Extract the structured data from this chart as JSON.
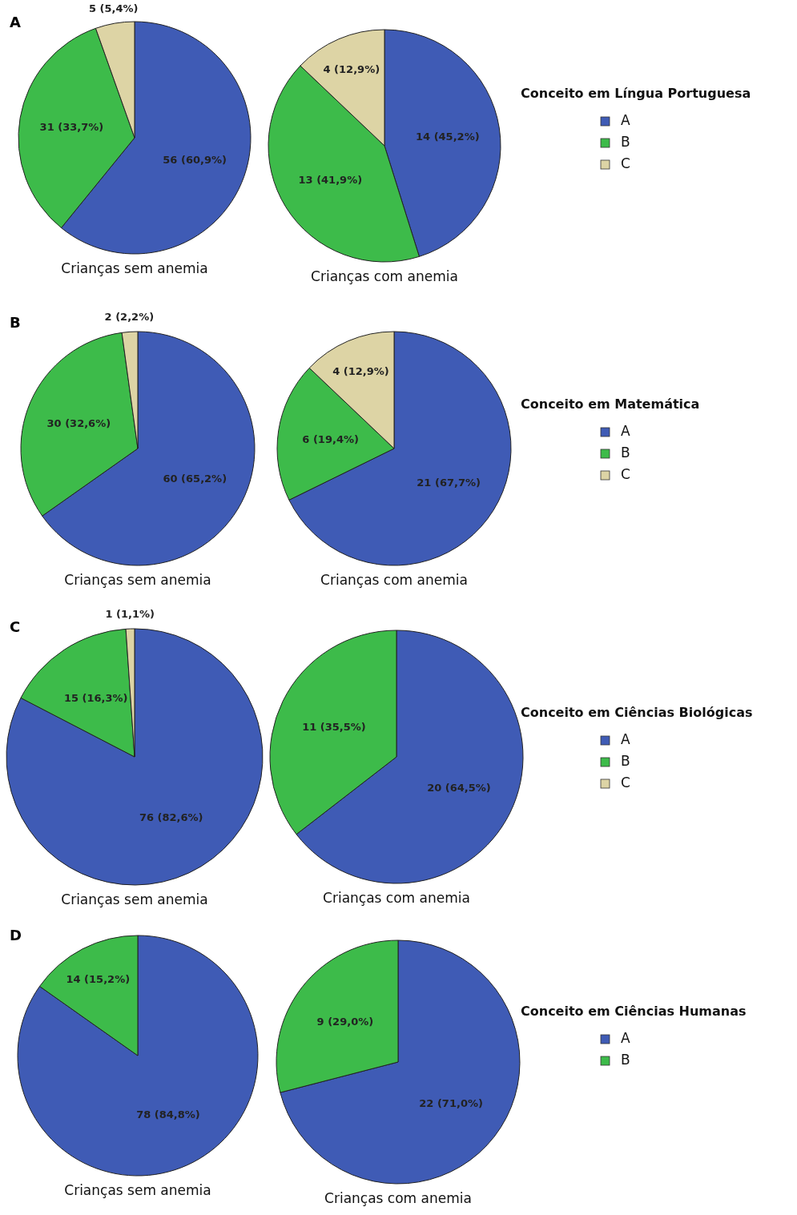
{
  "chart_data": [
    {
      "type": "pie",
      "title": "A",
      "categories": [
        "A",
        "B",
        "C"
      ],
      "values": [
        56,
        31,
        5
      ],
      "colors": [
        "#3f5bb5",
        "#3dbb4a",
        "#ddd4a5"
      ],
      "value_labels": [
        "56 (60,9%)",
        "31 (33,7%)",
        "5 (5,4%)"
      ],
      "xlabel": "Crianças sem anemia",
      "legend": "right",
      "legend_title": "Conceito em Língua Portuguesa"
    },
    {
      "type": "pie",
      "categories": [
        null,
        null,
        null
      ],
      "values": [
        14,
        13,
        4
      ],
      "colors": [
        "#3f5bb5",
        "#3dbb4a",
        "#ddd4a5"
      ],
      "value_labels": [
        "14 (45,2%)",
        "13 (41,9%)",
        "4 (12,9%)"
      ],
      "xlabel": "Crianças com anemia"
    },
    {
      "type": "pie",
      "title": "B",
      "categories": [
        "A",
        "B",
        "C"
      ],
      "values": [
        60,
        30,
        2
      ],
      "colors": [
        "#3f5bb5",
        "#3dbb4a",
        "#ddd4a5"
      ],
      "value_labels": [
        "60 (65,2%)",
        "30 (32,6%)",
        "2 (2,2%)"
      ],
      "xlabel": "Crianças sem anemia",
      "legend": "right",
      "legend_title": "Conceito em Matemática"
    },
    {
      "type": "pie",
      "categories": [
        null,
        null,
        null
      ],
      "values": [
        21,
        6,
        4
      ],
      "colors": [
        "#3f5bb5",
        "#3dbb4a",
        "#ddd4a5"
      ],
      "value_labels": [
        "21 (67,7%)",
        "6 (19,4%)",
        "4 (12,9%)"
      ],
      "xlabel": "Crianças com anemia"
    },
    {
      "type": "pie",
      "title": "C",
      "categories": [
        "A",
        "B",
        "C"
      ],
      "values": [
        76,
        15,
        1
      ],
      "colors": [
        "#3f5bb5",
        "#3dbb4a",
        "#ddd4a5"
      ],
      "value_labels": [
        "76 (82,6%)",
        "15 (16,3%)",
        "1 (1,1%)"
      ],
      "xlabel": "Crianças sem anemia",
      "legend": "right",
      "legend_title": "Conceito em Ciências Biológicas"
    },
    {
      "type": "pie",
      "categories": [
        null,
        null
      ],
      "values": [
        20,
        11
      ],
      "colors": [
        "#3f5bb5",
        "#3dbb4a"
      ],
      "value_labels": [
        "20 (64,5%)",
        "11 (35,5%)"
      ],
      "xlabel": "Crianças com anemia"
    },
    {
      "type": "pie",
      "title": "D",
      "categories": [
        "A",
        "B"
      ],
      "values": [
        78,
        14
      ],
      "colors": [
        "#3f5bb5",
        "#3dbb4a"
      ],
      "value_labels": [
        "78 (84,8%)",
        "14 (15,2%)"
      ],
      "xlabel": "Crianças sem anemia",
      "legend": "right",
      "legend_title": "Conceito em Ciências Humanas"
    },
    {
      "type": "pie",
      "categories": [
        null,
        null
      ],
      "values": [
        22,
        9
      ],
      "colors": [
        "#3f5bb5",
        "#3dbb4a"
      ],
      "value_labels": [
        "22 (71,0%)",
        "9 (29,0%)"
      ],
      "xlabel": "Crianças com anemia"
    }
  ]
}
